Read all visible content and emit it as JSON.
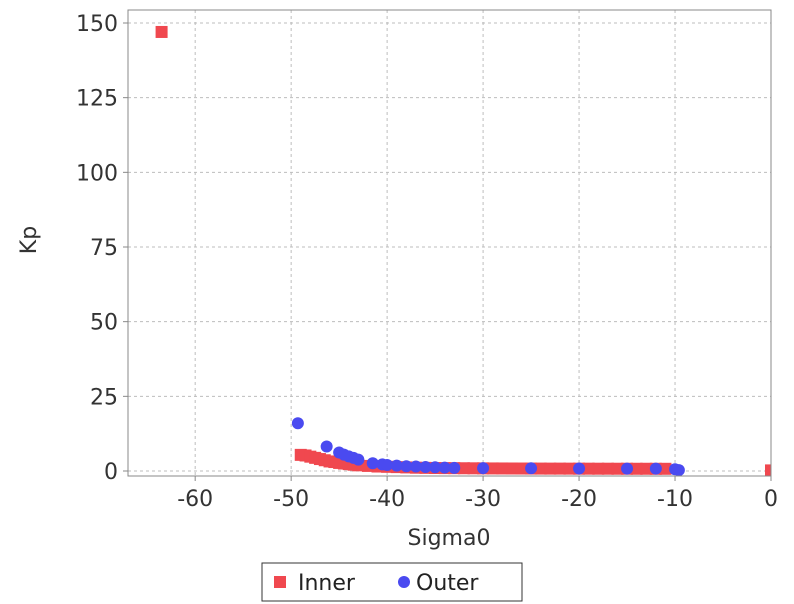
{
  "chart_data": {
    "type": "scatter",
    "title": "",
    "xlabel": "Sigma0",
    "ylabel": "Kp",
    "xlim": [
      -67,
      0
    ],
    "ylim": [
      0,
      150
    ],
    "x_ticks": [
      -60,
      -50,
      -40,
      -30,
      -20,
      -10,
      0
    ],
    "y_ticks": [
      0,
      25,
      50,
      75,
      100,
      125,
      150
    ],
    "x_tick_labels": [
      "-60",
      "-50",
      "-40",
      "-30",
      "-20",
      "-10",
      "0"
    ],
    "y_tick_labels": [
      "0",
      "25",
      "50",
      "75",
      "100",
      "125",
      "150"
    ],
    "grid": true,
    "legend_position": "bottom",
    "series": [
      {
        "name": "Inner",
        "marker": "square",
        "color": "#f0484f",
        "points": [
          [
            -63.5,
            147
          ],
          [
            -49,
            5.4
          ],
          [
            -48.5,
            5.2
          ],
          [
            -48,
            4.8
          ],
          [
            -47.5,
            4.4
          ],
          [
            -47,
            4.0
          ],
          [
            -46.5,
            3.6
          ],
          [
            -46,
            3.2
          ],
          [
            -45.5,
            3.0
          ],
          [
            -45,
            2.7
          ],
          [
            -44.5,
            2.5
          ],
          [
            -44,
            2.3
          ],
          [
            -43.5,
            2.1
          ],
          [
            -43,
            1.9
          ],
          [
            -42,
            1.7
          ],
          [
            -41,
            1.5
          ],
          [
            -40,
            1.4
          ],
          [
            -39,
            1.3
          ],
          [
            -38,
            1.2
          ],
          [
            -37,
            1.1
          ],
          [
            -36,
            1.05
          ],
          [
            -35,
            1.0
          ],
          [
            -34,
            0.97
          ],
          [
            -33,
            0.95
          ],
          [
            -32,
            0.92
          ],
          [
            -31,
            0.9
          ],
          [
            -30,
            0.88
          ],
          [
            -29,
            0.86
          ],
          [
            -28,
            0.85
          ],
          [
            -27,
            0.84
          ],
          [
            -26,
            0.83
          ],
          [
            -25,
            0.82
          ],
          [
            -24,
            0.81
          ],
          [
            -23,
            0.8
          ],
          [
            -22,
            0.8
          ],
          [
            -21,
            0.79
          ],
          [
            -20,
            0.78
          ],
          [
            -19,
            0.78
          ],
          [
            -18,
            0.77
          ],
          [
            -17,
            0.77
          ],
          [
            -16,
            0.76
          ],
          [
            -15,
            0.76
          ],
          [
            -14,
            0.75
          ],
          [
            -13,
            0.75
          ],
          [
            -12,
            0.74
          ],
          [
            -11,
            0.74
          ],
          [
            0,
            0.2
          ]
        ]
      },
      {
        "name": "Outer",
        "marker": "circle",
        "color": "#4a4af0",
        "points": [
          [
            -49.3,
            16
          ],
          [
            -46.3,
            8.2
          ],
          [
            -45,
            6.2
          ],
          [
            -44.5,
            5.5
          ],
          [
            -44,
            4.9
          ],
          [
            -43.5,
            4.4
          ],
          [
            -43,
            3.8
          ],
          [
            -41.5,
            2.6
          ],
          [
            -40.5,
            2.2
          ],
          [
            -40,
            2.0
          ],
          [
            -39,
            1.8
          ],
          [
            -38,
            1.6
          ],
          [
            -37,
            1.5
          ],
          [
            -36,
            1.35
          ],
          [
            -35,
            1.25
          ],
          [
            -34,
            1.15
          ],
          [
            -33,
            1.05
          ],
          [
            -30,
            0.95
          ],
          [
            -25,
            0.9
          ],
          [
            -20,
            0.85
          ],
          [
            -15,
            0.8
          ],
          [
            -12,
            0.78
          ],
          [
            -10,
            0.6
          ],
          [
            -9.6,
            0.3
          ]
        ]
      }
    ]
  }
}
